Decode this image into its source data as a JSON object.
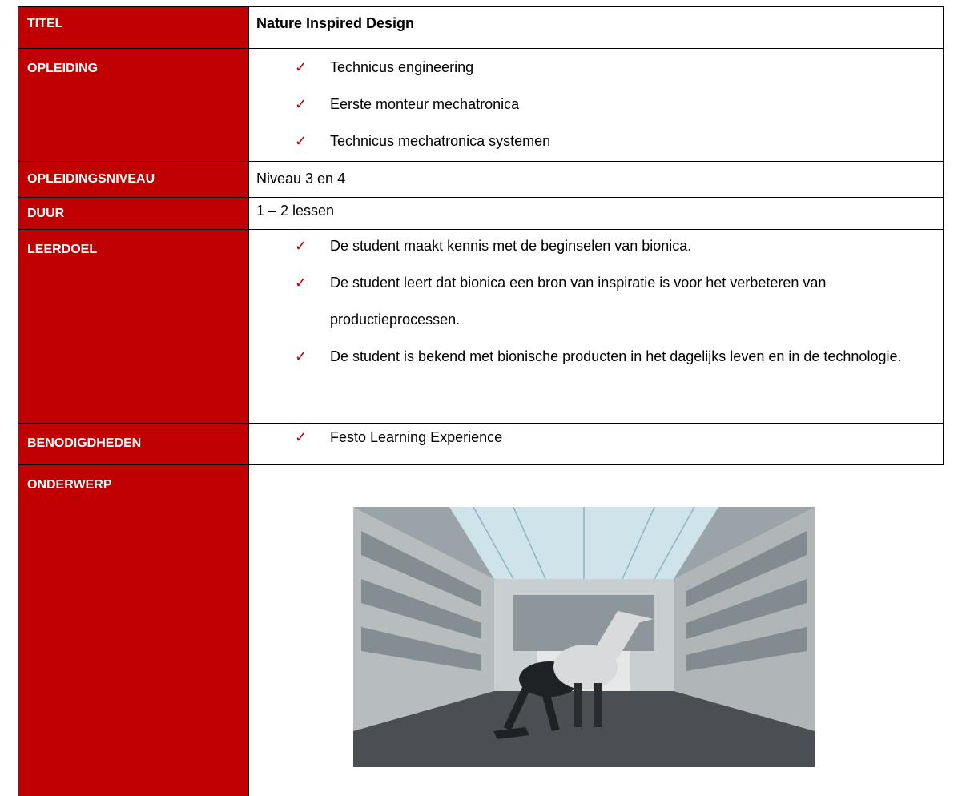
{
  "table": {
    "rows": [
      {
        "label": "TITEL",
        "value": "Nature Inspired Design"
      },
      {
        "label": "OPLEIDING",
        "items": [
          "Technicus engineering",
          "Eerste monteur mechatronica",
          "Technicus mechatronica systemen"
        ]
      },
      {
        "label": "OPLEIDINGSNIVEAU",
        "value": "Niveau 3 en 4"
      },
      {
        "label": "DUUR",
        "value": "1 – 2 lessen"
      },
      {
        "label": "LEERDOEL",
        "items": [
          "De student maakt kennis met de beginselen van bionica.",
          "De student leert dat bionica een bron van inspiratie is voor het verbeteren van productieprocessen.",
          "De student is bekend met bionische producten in het dagelijks leven en in de technologie."
        ]
      },
      {
        "label": "BENODIGDHEDEN",
        "items": [
          "Festo Learning Experience"
        ]
      },
      {
        "label": "ONDERWERP"
      }
    ]
  }
}
